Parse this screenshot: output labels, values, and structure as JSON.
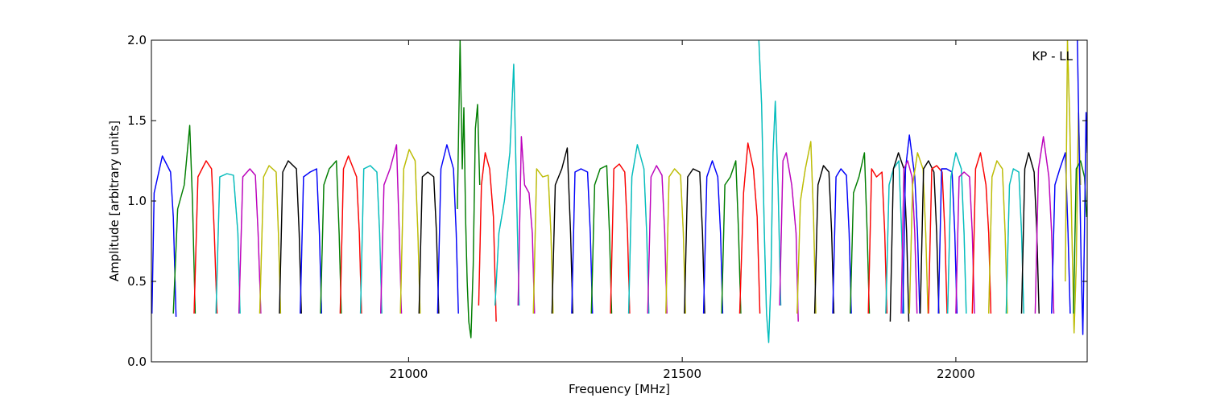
{
  "chart_data": {
    "type": "line",
    "title": "",
    "xlabel": "Frequency [MHz]",
    "ylabel": "Amplitude [arbitrary units]",
    "annotation": "KP - LL",
    "xlim": [
      20530,
      22240
    ],
    "ylim": [
      0.0,
      2.0
    ],
    "xticks": [
      {
        "value": 21000,
        "label": "21000"
      },
      {
        "value": 21500,
        "label": "21500"
      },
      {
        "value": 22000,
        "label": "22000"
      }
    ],
    "yticks": [
      {
        "value": 0.0,
        "label": "0.0"
      },
      {
        "value": 0.5,
        "label": "0.5"
      },
      {
        "value": 1.0,
        "label": "1.0"
      },
      {
        "value": 1.5,
        "label": "1.5"
      },
      {
        "value": 2.0,
        "label": "2.0"
      }
    ],
    "grid": false,
    "legend": "none",
    "color_cycle": [
      "#0000ff",
      "#008000",
      "#ff0000",
      "#00bfbf",
      "#bf00bf",
      "#bfbf00",
      "#000000"
    ],
    "background_color": "#c0c0c0",
    "series": [
      {
        "color": "#0000ff",
        "x": [
          20531,
          20535,
          20550,
          20565,
          20570,
          20575
        ],
        "y": [
          0.3,
          1.05,
          1.28,
          1.18,
          0.9,
          0.28
        ]
      },
      {
        "color": "#008000",
        "x": [
          20570,
          20578,
          20590,
          20600,
          20605,
          20610
        ],
        "y": [
          0.3,
          0.95,
          1.1,
          1.47,
          1.0,
          0.3
        ]
      },
      {
        "color": "#ff0000",
        "x": [
          20608,
          20615,
          20630,
          20640,
          20645,
          20650
        ],
        "y": [
          0.3,
          1.15,
          1.25,
          1.2,
          0.8,
          0.3
        ]
      },
      {
        "color": "#00bfbf",
        "x": [
          20648,
          20655,
          20668,
          20680,
          20688,
          20692
        ],
        "y": [
          0.3,
          1.15,
          1.17,
          1.16,
          0.8,
          0.3
        ]
      },
      {
        "color": "#bf00bf",
        "x": [
          20690,
          20697,
          20710,
          20720,
          20725,
          20730
        ],
        "y": [
          0.3,
          1.15,
          1.2,
          1.16,
          0.8,
          0.3
        ]
      },
      {
        "color": "#bfbf00",
        "x": [
          20728,
          20735,
          20745,
          20758,
          20762,
          20766
        ],
        "y": [
          0.3,
          1.15,
          1.22,
          1.18,
          0.8,
          0.3
        ]
      },
      {
        "color": "#000000",
        "x": [
          20764,
          20770,
          20780,
          20795,
          20800,
          20804
        ],
        "y": [
          0.3,
          1.18,
          1.25,
          1.2,
          0.8,
          0.3
        ]
      },
      {
        "color": "#0000ff",
        "x": [
          20802,
          20808,
          20820,
          20832,
          20837,
          20841
        ],
        "y": [
          0.3,
          1.15,
          1.18,
          1.2,
          0.8,
          0.3
        ]
      },
      {
        "color": "#008000",
        "x": [
          20839,
          20845,
          20855,
          20868,
          20873,
          20877
        ],
        "y": [
          0.3,
          1.1,
          1.2,
          1.25,
          0.8,
          0.3
        ]
      },
      {
        "color": "#ff0000",
        "x": [
          20875,
          20881,
          20890,
          20905,
          20910,
          20914
        ],
        "y": [
          0.3,
          1.2,
          1.28,
          1.15,
          0.8,
          0.3
        ]
      },
      {
        "color": "#00bfbf",
        "x": [
          20912,
          20918,
          20930,
          20942,
          20947,
          20951
        ],
        "y": [
          0.3,
          1.2,
          1.22,
          1.18,
          0.8,
          0.3
        ]
      },
      {
        "color": "#bf00bf",
        "x": [
          20949,
          20955,
          20966,
          20978,
          20983,
          20987
        ],
        "y": [
          0.3,
          1.1,
          1.2,
          1.35,
          0.8,
          0.3
        ]
      },
      {
        "color": "#bfbf00",
        "x": [
          20985,
          20991,
          21001,
          21012,
          21017,
          21021
        ],
        "y": [
          0.3,
          1.2,
          1.32,
          1.25,
          0.8,
          0.3
        ]
      },
      {
        "color": "#000000",
        "x": [
          21019,
          21025,
          21035,
          21046,
          21051,
          21055
        ],
        "y": [
          0.3,
          1.15,
          1.18,
          1.15,
          0.8,
          0.3
        ]
      },
      {
        "color": "#0000ff",
        "x": [
          21053,
          21059,
          21070,
          21082,
          21087,
          21091
        ],
        "y": [
          0.3,
          1.2,
          1.35,
          1.2,
          0.8,
          0.3
        ]
      },
      {
        "color": "#008000",
        "x": [
          21089,
          21094,
          21098,
          21101,
          21104,
          21107,
          21110,
          21114,
          21118,
          21122,
          21126,
          21130
        ],
        "y": [
          0.95,
          2.0,
          1.2,
          1.58,
          0.9,
          0.5,
          0.25,
          0.15,
          0.6,
          1.45,
          1.6,
          1.1
        ]
      },
      {
        "color": "#ff0000",
        "x": [
          21128,
          21133,
          21140,
          21148,
          21155,
          21160
        ],
        "y": [
          0.35,
          1.1,
          1.3,
          1.2,
          0.9,
          0.25
        ]
      },
      {
        "color": "#00bfbf",
        "x": [
          21158,
          21165,
          21175,
          21185,
          21192,
          21197,
          21202
        ],
        "y": [
          0.35,
          0.8,
          1.0,
          1.3,
          1.85,
          1.1,
          0.35
        ]
      },
      {
        "color": "#bf00bf",
        "x": [
          21200,
          21206,
          21212,
          21220,
          21226,
          21230
        ],
        "y": [
          0.35,
          1.4,
          1.1,
          1.05,
          0.8,
          0.3
        ]
      },
      {
        "color": "#bfbf00",
        "x": [
          21228,
          21234,
          21245,
          21255,
          21260,
          21264
        ],
        "y": [
          0.3,
          1.2,
          1.15,
          1.16,
          0.8,
          0.3
        ]
      },
      {
        "color": "#000000",
        "x": [
          21262,
          21268,
          21280,
          21290,
          21296,
          21300
        ],
        "y": [
          0.3,
          1.1,
          1.2,
          1.33,
          0.8,
          0.3
        ]
      },
      {
        "color": "#0000ff",
        "x": [
          21298,
          21304,
          21315,
          21327,
          21332,
          21336
        ],
        "y": [
          0.3,
          1.18,
          1.2,
          1.18,
          0.8,
          0.3
        ]
      },
      {
        "color": "#008000",
        "x": [
          21334,
          21340,
          21350,
          21362,
          21367,
          21371
        ],
        "y": [
          0.3,
          1.1,
          1.2,
          1.22,
          0.8,
          0.3
        ]
      },
      {
        "color": "#ff0000",
        "x": [
          21369,
          21375,
          21385,
          21395,
          21400,
          21404
        ],
        "y": [
          0.3,
          1.2,
          1.23,
          1.18,
          0.8,
          0.3
        ]
      },
      {
        "color": "#00bfbf",
        "x": [
          21402,
          21408,
          21418,
          21430,
          21435,
          21439
        ],
        "y": [
          0.3,
          1.15,
          1.35,
          1.2,
          0.8,
          0.3
        ]
      },
      {
        "color": "#bf00bf",
        "x": [
          21437,
          21443,
          21453,
          21463,
          21468,
          21472
        ],
        "y": [
          0.3,
          1.15,
          1.22,
          1.16,
          0.8,
          0.3
        ]
      },
      {
        "color": "#bfbf00",
        "x": [
          21470,
          21476,
          21486,
          21497,
          21502,
          21506
        ],
        "y": [
          0.3,
          1.15,
          1.2,
          1.16,
          0.8,
          0.3
        ]
      },
      {
        "color": "#000000",
        "x": [
          21504,
          21510,
          21520,
          21532,
          21537,
          21541
        ],
        "y": [
          0.3,
          1.15,
          1.2,
          1.18,
          0.8,
          0.3
        ]
      },
      {
        "color": "#0000ff",
        "x": [
          21539,
          21545,
          21555,
          21565,
          21570,
          21574
        ],
        "y": [
          0.3,
          1.15,
          1.25,
          1.15,
          0.8,
          0.3
        ]
      },
      {
        "color": "#008000",
        "x": [
          21572,
          21578,
          21588,
          21598,
          21603,
          21607
        ],
        "y": [
          0.3,
          1.1,
          1.15,
          1.25,
          0.8,
          0.3
        ]
      },
      {
        "color": "#ff0000",
        "x": [
          21605,
          21612,
          21620,
          21630,
          21637,
          21642
        ],
        "y": [
          0.3,
          1.05,
          1.36,
          1.2,
          0.9,
          0.3
        ]
      },
      {
        "color": "#00bfbf",
        "x": [
          21640,
          21645,
          21650,
          21654,
          21658,
          21662,
          21666,
          21670,
          21675,
          21680
        ],
        "y": [
          2.0,
          1.6,
          0.8,
          0.3,
          0.12,
          0.5,
          1.3,
          1.62,
          1.1,
          0.35
        ]
      },
      {
        "color": "#bf00bf",
        "x": [
          21678,
          21684,
          21690,
          21700,
          21708,
          21712
        ],
        "y": [
          0.35,
          1.25,
          1.3,
          1.1,
          0.8,
          0.25
        ]
      },
      {
        "color": "#bfbf00",
        "x": [
          21710,
          21716,
          21725,
          21735,
          21740,
          21744
        ],
        "y": [
          0.3,
          1.0,
          1.2,
          1.37,
          0.9,
          0.3
        ]
      },
      {
        "color": "#000000",
        "x": [
          21742,
          21748,
          21758,
          21768,
          21773,
          21777
        ],
        "y": [
          0.3,
          1.1,
          1.22,
          1.18,
          0.8,
          0.3
        ]
      },
      {
        "color": "#0000ff",
        "x": [
          21775,
          21781,
          21790,
          21800,
          21805,
          21809
        ],
        "y": [
          0.3,
          1.15,
          1.2,
          1.16,
          0.8,
          0.3
        ]
      },
      {
        "color": "#008000",
        "x": [
          21807,
          21813,
          21823,
          21833,
          21838,
          21842
        ],
        "y": [
          0.3,
          1.05,
          1.15,
          1.3,
          0.8,
          0.3
        ]
      },
      {
        "color": "#ff0000",
        "x": [
          21840,
          21846,
          21855,
          21865,
          21870,
          21874
        ],
        "y": [
          0.3,
          1.2,
          1.15,
          1.18,
          0.8,
          0.3
        ]
      },
      {
        "color": "#00bfbf",
        "x": [
          21872,
          21878,
          21886,
          21896,
          21901,
          21905
        ],
        "y": [
          0.3,
          1.1,
          1.2,
          1.25,
          0.8,
          0.3
        ]
      },
      {
        "color": "#000000",
        "x": [
          21880,
          21886,
          21895,
          21905,
          21910,
          21914
        ],
        "y": [
          0.25,
          1.2,
          1.3,
          1.2,
          0.8,
          0.25
        ]
      },
      {
        "color": "#0000ff",
        "x": [
          21903,
          21908,
          21915,
          21925,
          21930,
          21934
        ],
        "y": [
          0.3,
          1.2,
          1.41,
          1.15,
          0.8,
          0.3
        ]
      },
      {
        "color": "#bf00bf",
        "x": [
          21900,
          21905,
          21912,
          21920,
          21925,
          21929
        ],
        "y": [
          0.3,
          1.2,
          1.25,
          1.15,
          0.8,
          0.3
        ]
      },
      {
        "color": "#bfbf00",
        "x": [
          21915,
          21921,
          21930,
          21940,
          21945,
          21949
        ],
        "y": [
          0.3,
          1.1,
          1.3,
          1.2,
          0.8,
          0.3
        ]
      },
      {
        "color": "#000000",
        "x": [
          21935,
          21941,
          21950,
          21960,
          21965,
          21969
        ],
        "y": [
          0.3,
          1.2,
          1.25,
          1.18,
          0.8,
          0.3
        ]
      },
      {
        "color": "#ff0000",
        "x": [
          21950,
          21956,
          21965,
          21975,
          21980,
          21984
        ],
        "y": [
          0.3,
          1.2,
          1.22,
          1.18,
          0.8,
          0.3
        ]
      },
      {
        "color": "#0000ff",
        "x": [
          21968,
          21974,
          21983,
          21993,
          21998,
          22002
        ],
        "y": [
          0.3,
          1.2,
          1.2,
          1.18,
          0.8,
          0.3
        ]
      },
      {
        "color": "#00bfbf",
        "x": [
          21985,
          21991,
          22000,
          22010,
          22015,
          22019
        ],
        "y": [
          0.3,
          1.15,
          1.3,
          1.2,
          0.8,
          0.3
        ]
      },
      {
        "color": "#bf00bf",
        "x": [
          22000,
          22006,
          22015,
          22025,
          22030,
          22034
        ],
        "y": [
          0.3,
          1.15,
          1.18,
          1.15,
          0.8,
          0.3
        ]
      },
      {
        "color": "#ff0000",
        "x": [
          22030,
          22036,
          22045,
          22055,
          22060,
          22064
        ],
        "y": [
          0.3,
          1.2,
          1.3,
          1.1,
          0.8,
          0.3
        ]
      },
      {
        "color": "#bfbf00",
        "x": [
          22060,
          22066,
          22075,
          22085,
          22090,
          22094
        ],
        "y": [
          0.3,
          1.15,
          1.25,
          1.2,
          0.8,
          0.3
        ]
      },
      {
        "color": "#00bfbf",
        "x": [
          22092,
          22098,
          22105,
          22115,
          22120,
          22124
        ],
        "y": [
          0.3,
          1.1,
          1.2,
          1.18,
          0.8,
          0.3
        ]
      },
      {
        "color": "#000000",
        "x": [
          22120,
          22126,
          22133,
          22143,
          22148,
          22152
        ],
        "y": [
          0.3,
          1.2,
          1.3,
          1.18,
          0.8,
          0.3
        ]
      },
      {
        "color": "#bf00bf",
        "x": [
          22145,
          22151,
          22160,
          22170,
          22175,
          22179
        ],
        "y": [
          0.3,
          1.2,
          1.4,
          1.15,
          0.8,
          0.3
        ]
      },
      {
        "color": "#0000ff",
        "x": [
          22175,
          22181,
          22190,
          22200,
          22205,
          22209
        ],
        "y": [
          0.3,
          1.1,
          1.2,
          1.3,
          0.8,
          0.3
        ]
      },
      {
        "color": "#bfbf00",
        "x": [
          22200,
          22204,
          22208,
          22212,
          22216,
          22220,
          22224,
          22228
        ],
        "y": [
          0.5,
          2.0,
          1.5,
          0.8,
          0.18,
          0.6,
          1.55,
          1.1
        ]
      },
      {
        "color": "#008000",
        "x": [
          22215,
          22220,
          22228,
          22235,
          22239
        ],
        "y": [
          0.3,
          1.2,
          1.25,
          1.15,
          0.9
        ]
      },
      {
        "color": "#0000ff",
        "x": [
          22222,
          22226,
          22229,
          22232,
          22235,
          22238,
          22240
        ],
        "y": [
          2.0,
          1.2,
          0.6,
          0.17,
          0.8,
          1.55,
          1.3
        ]
      }
    ]
  }
}
